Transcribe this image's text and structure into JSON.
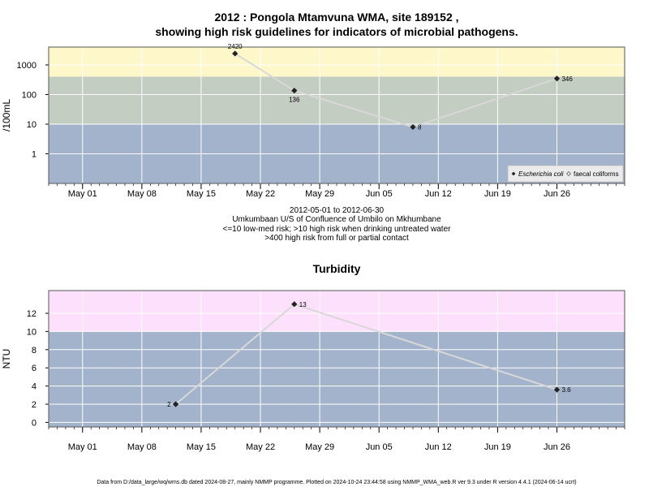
{
  "title": {
    "line1": "2012 : Pongola Mtamvuna WMA, site 189152 ,",
    "line2": "showing high risk guidelines for indicators of microbial pathogens."
  },
  "subtitle": {
    "line1": "2012-05-01 to 2012-06-30",
    "line2": "Umkumbaan U/S of Confluence of Umbilo on Mkhumbane",
    "line3": "<=10 low-med risk; >10 high risk when drinking untreated water",
    "line4": ">400 high risk from full or partial contact"
  },
  "footer": "Data from D:/data_large/wq/wms.db dated 2024-08-27, mainly NMMP programme. Plotted on 2024-10-24 23:44:58 using NMMP_WMA_web.R ver 9.3 under R version 4.4.1 (2024-06-14 ucrt)",
  "colors": {
    "band_low": "#a3b3cb",
    "band_mid": "#c4cdc2",
    "band_high_micro": "#fdf7c9",
    "band_high_turb": "#fde0fb",
    "grid": "#ffffff",
    "line": "#d8d8d8",
    "point": "#222222"
  },
  "chart_data": [
    {
      "type": "scatter",
      "scale": "log10",
      "ylabel": "/100mL",
      "yticks": [
        1,
        10,
        100,
        1000
      ],
      "ytick_labels": [
        "1",
        "10",
        "100",
        "1000"
      ],
      "ylim": [
        0.1,
        4000
      ],
      "xlim": [
        "2012-04-27",
        "2012-07-04"
      ],
      "xticks": [
        "2012-05-01",
        "2012-05-08",
        "2012-05-15",
        "2012-05-22",
        "2012-05-29",
        "2012-06-05",
        "2012-06-12",
        "2012-06-19",
        "2012-06-26"
      ],
      "xtick_labels": [
        "May 01",
        "May 08",
        "May 15",
        "May 22",
        "May 29",
        "Jun 05",
        "Jun 12",
        "Jun 19",
        "Jun 26"
      ],
      "bands": [
        {
          "from": 0.1,
          "to": 10,
          "color_key": "band_low"
        },
        {
          "from": 10,
          "to": 400,
          "color_key": "band_mid"
        },
        {
          "from": 400,
          "to": 4000,
          "color_key": "band_high_micro"
        }
      ],
      "series": [
        {
          "name": "Escherichia coli",
          "marker": "filled-diamond",
          "points": [
            {
              "x": "2012-05-19",
              "y": 2420,
              "label": "2420"
            },
            {
              "x": "2012-05-26",
              "y": 136,
              "label": "136"
            },
            {
              "x": "2012-06-09",
              "y": 8,
              "label": "8"
            },
            {
              "x": "2012-06-26",
              "y": 346,
              "label": "346"
            }
          ]
        },
        {
          "name": "faecal coliforms",
          "marker": "open-diamond",
          "points": []
        }
      ],
      "legend": {
        "position": "bottom-right",
        "items": [
          "Escherichia coli",
          "faecal coliforms"
        ]
      }
    },
    {
      "type": "scatter",
      "title": "Turbidity",
      "scale": "linear",
      "ylabel": "NTU",
      "yticks": [
        0,
        2,
        4,
        6,
        8,
        10,
        12
      ],
      "ytick_labels": [
        "0",
        "2",
        "4",
        "6",
        "8",
        "10",
        "12"
      ],
      "ylim": [
        -0.5,
        14.5
      ],
      "xlim": [
        "2012-04-27",
        "2012-07-04"
      ],
      "xticks": [
        "2012-05-01",
        "2012-05-08",
        "2012-05-15",
        "2012-05-22",
        "2012-05-29",
        "2012-06-05",
        "2012-06-12",
        "2012-06-19",
        "2012-06-26"
      ],
      "xtick_labels": [
        "May 01",
        "May 08",
        "May 15",
        "May 22",
        "May 29",
        "Jun 05",
        "Jun 12",
        "Jun 19",
        "Jun 26"
      ],
      "bands": [
        {
          "from": -0.5,
          "to": 10,
          "color_key": "band_low"
        },
        {
          "from": 10,
          "to": 14.5,
          "color_key": "band_high_turb"
        }
      ],
      "series": [
        {
          "name": "Turbidity",
          "marker": "filled-diamond",
          "points": [
            {
              "x": "2012-05-12",
              "y": 2,
              "label": "2"
            },
            {
              "x": "2012-05-26",
              "y": 13,
              "label": "13"
            },
            {
              "x": "2012-06-26",
              "y": 3.6,
              "label": "3.6"
            }
          ]
        }
      ]
    }
  ]
}
